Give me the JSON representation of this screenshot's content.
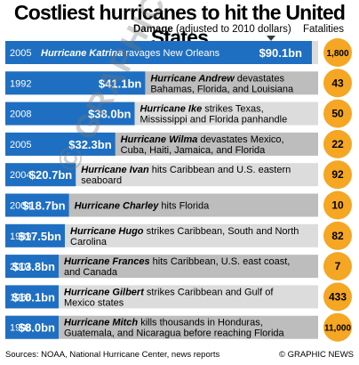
{
  "title": "Costliest hurricanes to hit the United States",
  "header": {
    "damage_label": "Damage",
    "damage_note": "(adjusted to 2010 dollars)",
    "fatalities_label": "Fatalities"
  },
  "footer": {
    "source": "Sources: NOAA, National Hurricane Center, news reports",
    "credit": "© GRAPHIC NEWS"
  },
  "watermark": "© GRAPHIC NEWS",
  "colors": {
    "bar_blue": "#1e6fc1",
    "bar_blue_light": "#4a8fd6",
    "row_bg_light": "#dcdcdc",
    "row_bg_dark": "#bdbdbd",
    "fatality_orange": "#f5a623"
  },
  "chart_data": {
    "type": "bar",
    "title": "Costliest hurricanes to hit the United States",
    "unit": "$bn",
    "rows": [
      {
        "year": "2005",
        "value": 90.1,
        "label": "$90.1bn",
        "name": "Hurricane Katrina",
        "desc": " ravages New Orleans",
        "fatalities": "1,800"
      },
      {
        "year": "1992",
        "value": 41.1,
        "label": "$41.1bn",
        "name": "Hurricane Andrew",
        "desc": " devastates Bahamas, Florida, and Louisiana",
        "fatalities": "43"
      },
      {
        "year": "2008",
        "value": 38.0,
        "label": "$38.0bn",
        "name": "Hurricane Ike",
        "desc": " strikes Texas, Mississippi and Florida panhandle",
        "fatalities": "50"
      },
      {
        "year": "2005",
        "value": 32.3,
        "label": "$32.3bn",
        "name": "Hurricane Wilma",
        "desc": " devastates Mexico, Cuba, Haiti, Jamaica, and Florida",
        "fatalities": "22"
      },
      {
        "year": "2004",
        "value": 20.7,
        "label": "$20.7bn",
        "name": "Hurricane Ivan",
        "desc": " hits Caribbean and U.S. eastern seaboard",
        "fatalities": "92"
      },
      {
        "year": "2004",
        "value": 18.7,
        "label": "$18.7bn",
        "name": "Hurricane Charley",
        "desc": " hits Florida",
        "fatalities": "10"
      },
      {
        "year": "1989",
        "value": 17.5,
        "label": "$17.5bn",
        "name": "Hurricane Hugo",
        "desc": " strikes Caribbean, South and North Carolina",
        "fatalities": "82"
      },
      {
        "year": "2004",
        "value": 13.8,
        "label": "$13.8bn",
        "name": "Hurricane Frances",
        "desc": " hits Caribbean, U.S. east coast, and Canada",
        "fatalities": "7"
      },
      {
        "year": "1988",
        "value": 10.1,
        "label": "$10.1bn",
        "name": "Hurricane Gilbert",
        "desc": " strikes Caribbean and Gulf of Mexico states",
        "fatalities": "433"
      },
      {
        "year": "1998",
        "value": 8.0,
        "label": "$8.0bn",
        "name": "Hurricane Mitch",
        "desc": " kills thousands in Honduras, Guatemala, and Nicaragua before reaching Florida",
        "fatalities": "11,000"
      }
    ]
  }
}
